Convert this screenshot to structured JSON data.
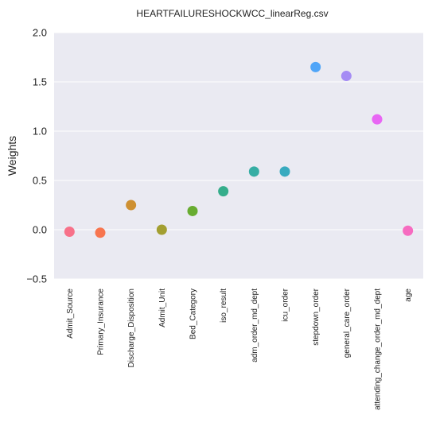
{
  "chart_data": {
    "type": "scatter",
    "title": "HEARTFAILURESHOCKWCC_linearReg.csv",
    "xlabel": "",
    "ylabel": "Weights",
    "ylim": [
      -0.5,
      2.0
    ],
    "yticks": [
      "−0.5",
      "0.0",
      "0.5",
      "1.0",
      "1.5",
      "2.0"
    ],
    "ytick_values": [
      -0.5,
      0.0,
      0.5,
      1.0,
      1.5,
      2.0
    ],
    "grid": true,
    "background": "#eaeaf2",
    "categories": [
      "Admit_Source",
      "Primary_Insurance",
      "Discharge_Disposition",
      "Admit_Unit",
      "Bed_Category",
      "iso_result",
      "adm_order_md_dept",
      "icu_order",
      "stepdown_order",
      "general_care_order",
      "attending_change_order_md_dept",
      "age"
    ],
    "values": [
      -0.02,
      -0.03,
      0.25,
      0.0,
      0.19,
      0.39,
      0.59,
      0.59,
      1.65,
      1.56,
      1.12,
      -0.01
    ],
    "colors": [
      "#f77189",
      "#f7754f",
      "#ce9032",
      "#a39f31",
      "#68ac31",
      "#35ad8b",
      "#36ada4",
      "#38aabf",
      "#50a5f8",
      "#a58cf4",
      "#e866f4",
      "#f66bc0"
    ]
  }
}
